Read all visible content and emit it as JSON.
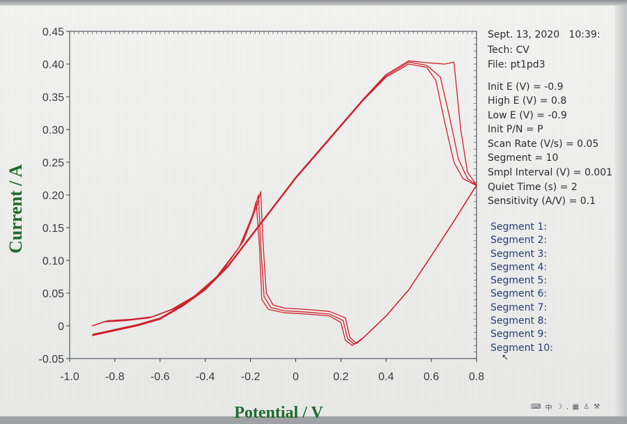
{
  "info": {
    "date": "Sept. 13, 2020",
    "time": "10:39:",
    "tech": "Tech: CV",
    "file": "File: pt1pd3",
    "params": [
      "Init E (V) = -0.9",
      "High E (V) = 0.8",
      "Low E (V) = -0.9",
      "Init P/N = P",
      "Scan Rate (V/s) = 0.05",
      "Segment = 10",
      "Smpl Interval (V) = 0.001",
      "Quiet Time (s) = 2",
      "Sensitivity (A/V) = 0.1"
    ],
    "segments": [
      "Segment 1:",
      "Segment 2:",
      "Segment 3:",
      "Segment 4:",
      "Segment 5:",
      "Segment 6:",
      "Segment 7:",
      "Segment 8:",
      "Segment 9:",
      "Segment 10:"
    ]
  },
  "colors": {
    "curve": "#d0202a",
    "axis": "#3a3a42",
    "axis_title": "#1f6a2e",
    "segment_text": "#233d7a"
  },
  "taskbar_icons": [
    "keyboard-icon",
    "ime-icon",
    "moon-icon",
    "comma-icon",
    "grid-icon",
    "user-icon",
    "wrench-icon"
  ],
  "chart_data": {
    "type": "line",
    "xlabel": "Potential / V",
    "ylabel": "Current / A",
    "xlim": [
      -1.0,
      0.8
    ],
    "ylim": [
      -0.05,
      0.45
    ],
    "x_ticks": [
      "-1.0",
      "-0.8",
      "-0.6",
      "-0.4",
      "-0.2",
      "0",
      "0.2",
      "0.4",
      "0.6",
      "0.8"
    ],
    "y_ticks": [
      "0.45",
      "0.40",
      "0.35",
      "0.30",
      "0.25",
      "0.20",
      "0.15",
      "0.10",
      "0.05",
      "0",
      "-0.05"
    ],
    "grid": false,
    "series": [
      {
        "points": [
          [
            -0.9,
            -0.015
          ],
          [
            -0.7,
            0.0
          ],
          [
            -0.6,
            0.01
          ],
          [
            -0.5,
            0.03
          ],
          [
            -0.4,
            0.055
          ],
          [
            -0.3,
            0.09
          ],
          [
            -0.2,
            0.135
          ],
          [
            -0.1,
            0.18
          ],
          [
            0.0,
            0.225
          ],
          [
            0.1,
            0.265
          ],
          [
            0.2,
            0.305
          ],
          [
            0.3,
            0.345
          ],
          [
            0.4,
            0.38
          ],
          [
            0.5,
            0.4
          ],
          [
            0.58,
            0.395
          ],
          [
            0.62,
            0.375
          ],
          [
            0.66,
            0.31
          ],
          [
            0.7,
            0.25
          ],
          [
            0.74,
            0.225
          ],
          [
            0.79,
            0.216
          ],
          [
            0.8,
            0.215
          ],
          [
            0.7,
            0.16
          ],
          [
            0.6,
            0.107
          ],
          [
            0.5,
            0.055
          ],
          [
            0.4,
            0.015
          ],
          [
            0.3,
            -0.018
          ],
          [
            0.25,
            -0.03
          ],
          [
            0.22,
            -0.022
          ],
          [
            0.2,
            0.005
          ],
          [
            0.15,
            0.015
          ],
          [
            0.05,
            0.018
          ],
          [
            -0.05,
            0.02
          ],
          [
            -0.12,
            0.025
          ],
          [
            -0.15,
            0.04
          ],
          [
            -0.16,
            0.12
          ],
          [
            -0.175,
            0.19
          ],
          [
            -0.19,
            0.17
          ],
          [
            -0.25,
            0.12
          ],
          [
            -0.35,
            0.075
          ],
          [
            -0.45,
            0.045
          ],
          [
            -0.55,
            0.025
          ],
          [
            -0.65,
            0.012
          ],
          [
            -0.75,
            0.008
          ],
          [
            -0.85,
            0.006
          ],
          [
            -0.9,
            0.0
          ]
        ]
      },
      {
        "points": [
          [
            -0.9,
            -0.014
          ],
          [
            -0.7,
            0.001
          ],
          [
            -0.6,
            0.011
          ],
          [
            -0.5,
            0.031
          ],
          [
            -0.4,
            0.056
          ],
          [
            -0.3,
            0.091
          ],
          [
            -0.2,
            0.136
          ],
          [
            -0.1,
            0.181
          ],
          [
            0.0,
            0.226
          ],
          [
            0.1,
            0.266
          ],
          [
            0.2,
            0.306
          ],
          [
            0.3,
            0.346
          ],
          [
            0.4,
            0.382
          ],
          [
            0.5,
            0.403
          ],
          [
            0.58,
            0.398
          ],
          [
            0.64,
            0.38
          ],
          [
            0.68,
            0.32
          ],
          [
            0.72,
            0.255
          ],
          [
            0.76,
            0.225
          ],
          [
            0.8,
            0.215
          ],
          [
            0.7,
            0.16
          ],
          [
            0.6,
            0.107
          ],
          [
            0.5,
            0.055
          ],
          [
            0.4,
            0.015
          ],
          [
            0.3,
            -0.018
          ],
          [
            0.26,
            -0.028
          ],
          [
            0.23,
            -0.02
          ],
          [
            0.21,
            0.008
          ],
          [
            0.15,
            0.018
          ],
          [
            0.05,
            0.021
          ],
          [
            -0.05,
            0.023
          ],
          [
            -0.11,
            0.028
          ],
          [
            -0.14,
            0.045
          ],
          [
            -0.155,
            0.125
          ],
          [
            -0.165,
            0.2
          ],
          [
            -0.18,
            0.18
          ],
          [
            -0.24,
            0.125
          ],
          [
            -0.34,
            0.078
          ],
          [
            -0.44,
            0.047
          ],
          [
            -0.54,
            0.026
          ],
          [
            -0.64,
            0.013
          ],
          [
            -0.74,
            0.009
          ],
          [
            -0.84,
            0.007
          ],
          [
            -0.9,
            0.0
          ]
        ]
      },
      {
        "points": [
          [
            -0.9,
            -0.013
          ],
          [
            -0.7,
            0.002
          ],
          [
            -0.6,
            0.012
          ],
          [
            -0.5,
            0.032
          ],
          [
            -0.4,
            0.057
          ],
          [
            -0.3,
            0.092
          ],
          [
            -0.2,
            0.137
          ],
          [
            -0.1,
            0.182
          ],
          [
            0.0,
            0.227
          ],
          [
            0.1,
            0.267
          ],
          [
            0.2,
            0.307
          ],
          [
            0.3,
            0.347
          ],
          [
            0.4,
            0.384
          ],
          [
            0.5,
            0.405
          ],
          [
            0.58,
            0.402
          ],
          [
            0.66,
            0.4
          ],
          [
            0.7,
            0.403
          ],
          [
            0.73,
            0.3
          ],
          [
            0.76,
            0.235
          ],
          [
            0.8,
            0.215
          ],
          [
            0.7,
            0.16
          ],
          [
            0.6,
            0.107
          ],
          [
            0.5,
            0.055
          ],
          [
            0.4,
            0.015
          ],
          [
            0.3,
            -0.018
          ],
          [
            0.27,
            -0.027
          ],
          [
            0.24,
            -0.018
          ],
          [
            0.22,
            0.012
          ],
          [
            0.15,
            0.022
          ],
          [
            0.05,
            0.025
          ],
          [
            -0.05,
            0.027
          ],
          [
            -0.1,
            0.032
          ],
          [
            -0.13,
            0.05
          ],
          [
            -0.145,
            0.13
          ],
          [
            -0.155,
            0.205
          ],
          [
            -0.17,
            0.185
          ],
          [
            -0.23,
            0.13
          ],
          [
            -0.33,
            0.081
          ],
          [
            -0.43,
            0.049
          ],
          [
            -0.53,
            0.027
          ],
          [
            -0.63,
            0.014
          ],
          [
            -0.73,
            0.01
          ],
          [
            -0.83,
            0.008
          ],
          [
            -0.9,
            0.0
          ]
        ]
      }
    ]
  }
}
